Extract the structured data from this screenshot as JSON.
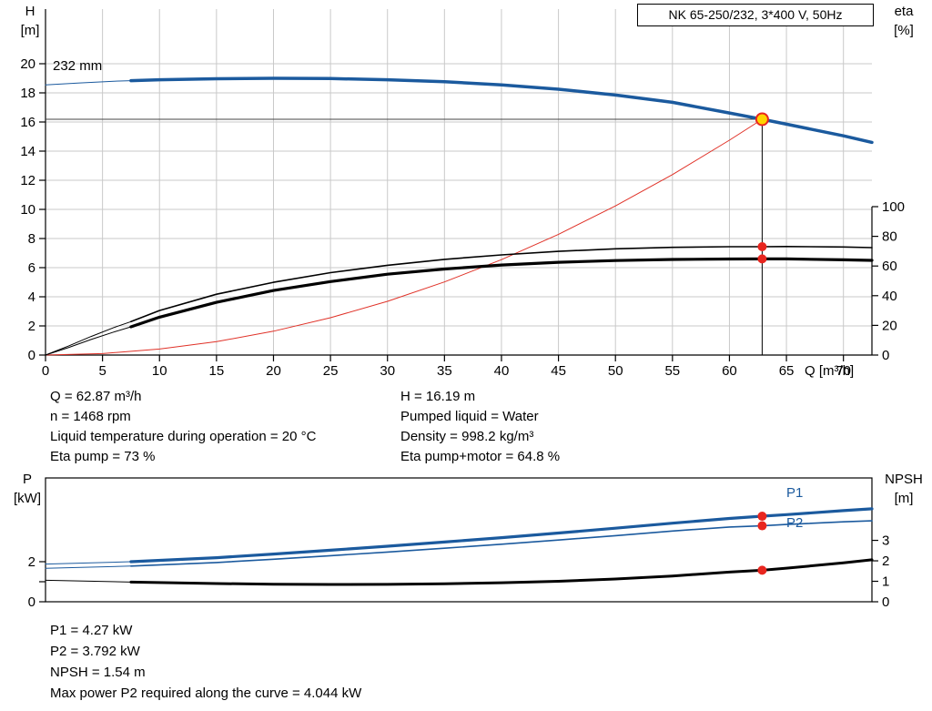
{
  "header": {
    "title_box": "NK 65-250/232, 3*400 V, 50Hz"
  },
  "labels": {
    "top_left_1": "H",
    "top_left_2": "[m]",
    "top_right_1": "eta",
    "top_right_2": "[%]",
    "x_axis": "Q [m³/h]",
    "impeller": "232 mm",
    "bottom_left_1": "P",
    "bottom_left_2": "[kW]",
    "bottom_right_1": "NPSH",
    "bottom_right_2": "[m]",
    "p1": "P1",
    "p2": "P2"
  },
  "info_block": {
    "left": [
      "Q = 62.87 m³/h",
      "n = 1468 rpm",
      "Liquid temperature during operation = 20 °C",
      "Eta pump = 73 %"
    ],
    "right": [
      "H = 16.19 m",
      "Pumped liquid = Water",
      "Density = 998.2 kg/m³",
      "Eta pump+motor = 64.8 %"
    ]
  },
  "result_block": [
    "P1 = 4.27 kW",
    "P2 = 3.792 kW",
    "NPSH = 1.54 m",
    "Max power P2 required along the curve = 4.044 kW"
  ],
  "colors": {
    "curve_blue": "#1b5a9e",
    "curve_red": "#e03127",
    "black": "#000000",
    "grid": "#c9c9c9",
    "guide": "#444444",
    "marker_yellow": "#ffd400",
    "marker_ring": "#e8261f",
    "marker_dot": "#e8261f"
  },
  "chart_data": [
    {
      "type": "line",
      "title": "NK 65-250/232, 3*400 V, 50Hz",
      "xlabel": "Q [m³/h]",
      "ylabel_left": "H [m]",
      "ylabel_right": "eta [%]",
      "xlim": [
        0,
        72.5
      ],
      "ylim_left": [
        0,
        23.75
      ],
      "ylim_right": [
        0,
        100
      ],
      "x_ticks": [
        0,
        5,
        10,
        15,
        20,
        25,
        30,
        35,
        40,
        45,
        50,
        55,
        60,
        65,
        70
      ],
      "y_ticks": [
        0,
        2,
        4,
        6,
        8,
        10,
        12,
        14,
        16,
        18,
        20
      ],
      "eta_ticks": [
        0,
        20,
        40,
        60,
        80,
        100
      ],
      "grid": true,
      "duty_point": {
        "q": 62.87,
        "h": 16.19,
        "eta_pump": 73,
        "eta_pump_motor": 64.8
      },
      "series": [
        {
          "name": "head-curve-232mm",
          "axis": "H",
          "color_key": "curve_blue",
          "width": 3.5,
          "lead": [
            [
              0,
              18.55
            ],
            [
              3,
              18.68
            ],
            [
              6,
              18.8
            ],
            [
              7.5,
              18.84
            ]
          ],
          "points": [
            [
              7.5,
              18.84
            ],
            [
              10,
              18.9
            ],
            [
              15,
              18.97
            ],
            [
              20,
              19.0
            ],
            [
              25,
              18.98
            ],
            [
              30,
              18.9
            ],
            [
              35,
              18.76
            ],
            [
              40,
              18.55
            ],
            [
              45,
              18.25
            ],
            [
              50,
              17.85
            ],
            [
              55,
              17.35
            ],
            [
              60,
              16.62
            ],
            [
              62.87,
              16.19
            ],
            [
              65,
              15.85
            ],
            [
              70,
              15.05
            ],
            [
              72.5,
              14.6
            ]
          ]
        },
        {
          "name": "system-curve",
          "axis": "H",
          "color_key": "curve_red",
          "width": 1,
          "points": [
            [
              0,
              0
            ],
            [
              5,
              0.1
            ],
            [
              10,
              0.41
            ],
            [
              15,
              0.92
            ],
            [
              20,
              1.64
            ],
            [
              25,
              2.56
            ],
            [
              30,
              3.69
            ],
            [
              35,
              5.02
            ],
            [
              40,
              6.55
            ],
            [
              45,
              8.29
            ],
            [
              50,
              10.24
            ],
            [
              55,
              12.39
            ],
            [
              60,
              14.75
            ],
            [
              62.87,
              16.19
            ]
          ]
        },
        {
          "name": "eta-pump-curve",
          "axis": "ETA",
          "color_key": "black",
          "width": 1.6,
          "lead": [
            [
              0,
              0
            ],
            [
              2,
              6
            ],
            [
              4,
              12.5
            ],
            [
              6,
              18.5
            ],
            [
              7.5,
              22.5
            ]
          ],
          "points": [
            [
              7.5,
              22.5
            ],
            [
              10,
              30
            ],
            [
              15,
              41
            ],
            [
              20,
              49
            ],
            [
              25,
              55.5
            ],
            [
              30,
              60.5
            ],
            [
              35,
              64.5
            ],
            [
              40,
              67.5
            ],
            [
              45,
              69.9
            ],
            [
              50,
              71.6
            ],
            [
              55,
              72.6
            ],
            [
              60,
              73
            ],
            [
              62.87,
              73
            ],
            [
              65,
              73.1
            ],
            [
              70,
              72.8
            ],
            [
              72.5,
              72.4
            ]
          ]
        },
        {
          "name": "eta-pump-motor-curve",
          "axis": "ETA",
          "color_key": "black",
          "width": 3.2,
          "lead": [
            [
              0,
              0
            ],
            [
              2,
              5
            ],
            [
              4,
              10.5
            ],
            [
              6,
              15.5
            ],
            [
              7.5,
              19
            ]
          ],
          "points": [
            [
              7.5,
              19
            ],
            [
              10,
              25.5
            ],
            [
              15,
              35.5
            ],
            [
              20,
              43.5
            ],
            [
              25,
              49.5
            ],
            [
              30,
              54.5
            ],
            [
              35,
              58
            ],
            [
              40,
              60.7
            ],
            [
              45,
              62.5
            ],
            [
              50,
              63.7
            ],
            [
              55,
              64.4
            ],
            [
              60,
              64.7
            ],
            [
              62.87,
              64.8
            ],
            [
              65,
              64.8
            ],
            [
              70,
              64.2
            ],
            [
              72.5,
              63.8
            ]
          ]
        }
      ]
    },
    {
      "type": "line",
      "ylabel_left": "P [kW]",
      "ylabel_right": "NPSH [m]",
      "xlim": [
        0,
        72.5
      ],
      "ylim_p": [
        0,
        6.18
      ],
      "ylim_npsh": [
        0,
        6.05
      ],
      "p_ticks": [
        0,
        1,
        2
      ],
      "p_tick_labels": [
        0,
        2
      ],
      "npsh_ticks": [
        0,
        1,
        2,
        3
      ],
      "grid": false,
      "duty_point": {
        "q": 62.87,
        "p1": 4.27,
        "p2": 3.792,
        "npsh": 1.54
      },
      "series": [
        {
          "name": "p1-curve",
          "axis": "P",
          "color_key": "curve_blue",
          "width": 3.2,
          "lead": [
            [
              0,
              1.88
            ],
            [
              7.5,
              2.0
            ]
          ],
          "points": [
            [
              7.5,
              2.0
            ],
            [
              15,
              2.2
            ],
            [
              20,
              2.38
            ],
            [
              25,
              2.57
            ],
            [
              30,
              2.77
            ],
            [
              35,
              2.98
            ],
            [
              40,
              3.2
            ],
            [
              45,
              3.43
            ],
            [
              50,
              3.67
            ],
            [
              55,
              3.92
            ],
            [
              60,
              4.16
            ],
            [
              62.87,
              4.27
            ],
            [
              65,
              4.35
            ],
            [
              70,
              4.55
            ],
            [
              72.5,
              4.64
            ]
          ]
        },
        {
          "name": "p2-curve",
          "axis": "P",
          "color_key": "curve_blue",
          "width": 1.6,
          "lead": [
            [
              0,
              1.67
            ],
            [
              7.5,
              1.78
            ]
          ],
          "points": [
            [
              7.5,
              1.78
            ],
            [
              15,
              1.96
            ],
            [
              20,
              2.12
            ],
            [
              25,
              2.3
            ],
            [
              30,
              2.48
            ],
            [
              35,
              2.67
            ],
            [
              40,
              2.87
            ],
            [
              45,
              3.08
            ],
            [
              50,
              3.3
            ],
            [
              55,
              3.53
            ],
            [
              60,
              3.73
            ],
            [
              62.87,
              3.792
            ],
            [
              65,
              3.86
            ],
            [
              70,
              3.99
            ],
            [
              72.5,
              4.04
            ]
          ]
        },
        {
          "name": "npsh-curve",
          "axis": "NPSH",
          "color_key": "black",
          "width": 3,
          "lead": [
            [
              0,
              1.05
            ],
            [
              7.5,
              0.96
            ]
          ],
          "points": [
            [
              7.5,
              0.96
            ],
            [
              15,
              0.89
            ],
            [
              20,
              0.86
            ],
            [
              25,
              0.845
            ],
            [
              30,
              0.85
            ],
            [
              35,
              0.88
            ],
            [
              40,
              0.93
            ],
            [
              45,
              1.0
            ],
            [
              50,
              1.11
            ],
            [
              55,
              1.26
            ],
            [
              60,
              1.45
            ],
            [
              62.87,
              1.54
            ],
            [
              65,
              1.64
            ],
            [
              70,
              1.9
            ],
            [
              72.5,
              2.05
            ]
          ]
        }
      ]
    }
  ]
}
